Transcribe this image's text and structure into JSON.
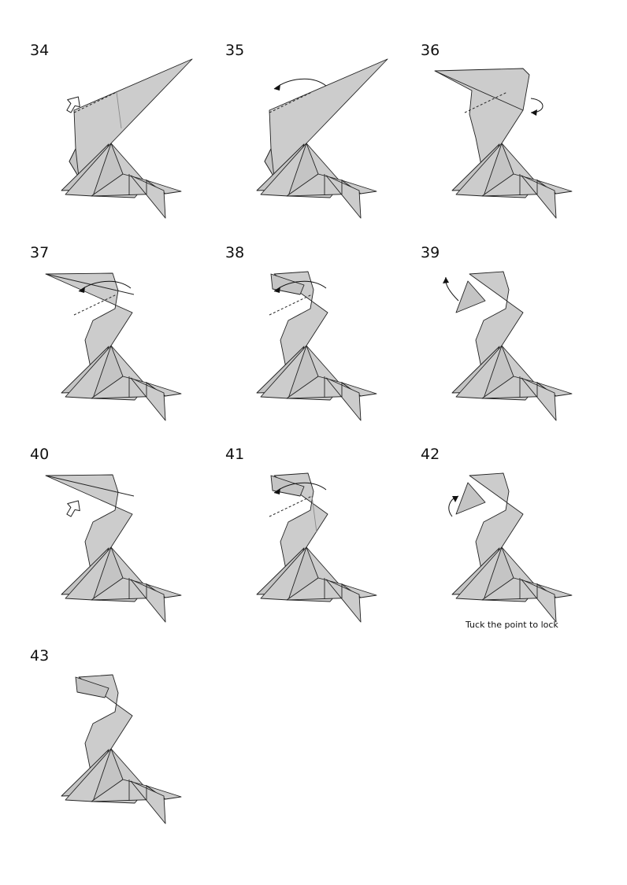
{
  "diagram": {
    "steps": [
      {
        "number": "34",
        "neck": "tall",
        "symbols": [
          "push-arrow",
          "valley-fold",
          "xray-line"
        ]
      },
      {
        "number": "35",
        "neck": "tall",
        "symbols": [
          "fold-arrow",
          "valley-fold"
        ]
      },
      {
        "number": "36",
        "neck": "head-left",
        "symbols": [
          "rotate-arrow",
          "valley-fold"
        ]
      },
      {
        "number": "37",
        "neck": "head-open",
        "symbols": [
          "fold-arrow",
          "valley-fold"
        ]
      },
      {
        "number": "38",
        "neck": "head-short",
        "symbols": [
          "fold-arrow",
          "valley-fold"
        ]
      },
      {
        "number": "39",
        "neck": "head-beak",
        "symbols": [
          "unfold-arrow"
        ]
      },
      {
        "number": "40",
        "neck": "head-open",
        "symbols": [
          "push-arrow"
        ]
      },
      {
        "number": "41",
        "neck": "head-short",
        "symbols": [
          "fold-arrow",
          "valley-fold",
          "xray-line"
        ]
      },
      {
        "number": "42",
        "neck": "head-beak",
        "symbols": [
          "tuck-arrow"
        ],
        "caption": "Tuck the point to lock"
      },
      {
        "number": "43",
        "neck": "head-short",
        "symbols": []
      }
    ]
  },
  "colors": {
    "paper": "#cccccc",
    "line": "#222222",
    "background": "#ffffff"
  }
}
